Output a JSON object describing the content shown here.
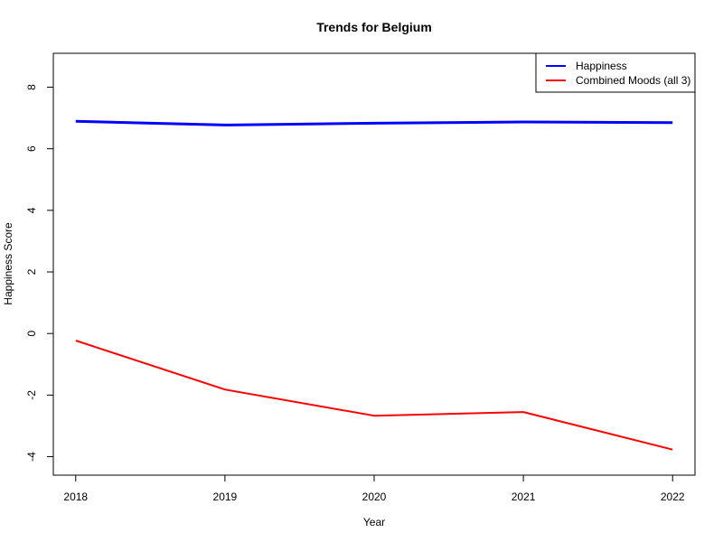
{
  "chart_data": {
    "type": "line",
    "title": "Trends for Belgium",
    "xlabel": "Year",
    "ylabel": "Happiness Score",
    "x": [
      2018,
      2019,
      2020,
      2021,
      2022
    ],
    "x_ticks": [
      "2018",
      "2019",
      "2020",
      "2021",
      "2022"
    ],
    "y_ticks": [
      "-4",
      "-2",
      "0",
      "2",
      "4",
      "6",
      "8"
    ],
    "xlim": [
      2017.85,
      2022.15
    ],
    "ylim": [
      -4.6,
      9.1
    ],
    "grid": false,
    "legend_position": "top-right",
    "series": [
      {
        "name": "Happiness",
        "color": "#0000ff",
        "values": [
          6.89,
          6.77,
          6.83,
          6.87,
          6.85
        ]
      },
      {
        "name": "Combined Moods (all 3)",
        "color": "#ff0000",
        "values": [
          -0.23,
          -1.82,
          -2.67,
          -2.55,
          -3.77
        ]
      }
    ]
  }
}
